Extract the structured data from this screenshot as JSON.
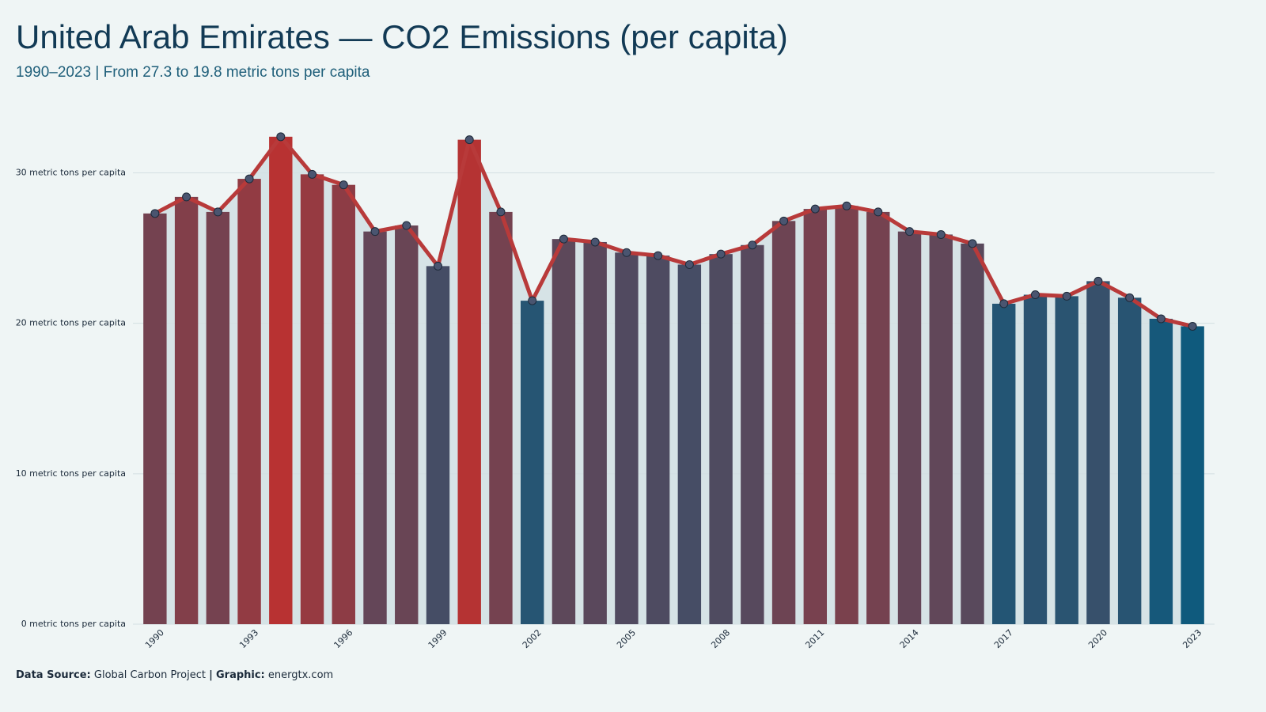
{
  "chart_data": {
    "type": "bar-line",
    "title": "United Arab Emirates — CO2 Emissions (per capita)",
    "subtitle": "1990–2023 | From 27.3 to 19.8 metric tons per capita",
    "categories": [
      "1990",
      null,
      null,
      "1993",
      null,
      null,
      "1996",
      null,
      null,
      "1999",
      null,
      null,
      "2002",
      null,
      null,
      "2005",
      null,
      null,
      "2008",
      null,
      null,
      "2011",
      null,
      null,
      "2014",
      null,
      null,
      "2017",
      null,
      null,
      "2020",
      null,
      null,
      "2023"
    ],
    "values": [
      27.3,
      28.4,
      27.4,
      29.6,
      32.4,
      29.9,
      29.2,
      26.1,
      26.5,
      23.8,
      32.2,
      27.4,
      21.5,
      25.6,
      25.4,
      24.7,
      24.5,
      23.9,
      24.6,
      25.2,
      26.8,
      27.6,
      27.8,
      27.4,
      26.1,
      25.9,
      25.3,
      21.3,
      21.9,
      21.8,
      22.8,
      21.7,
      20.3,
      19.8
    ],
    "ylim": [
      0,
      33.6
    ],
    "yticks": [
      {
        "value": 0,
        "label": "0 metric tons per capita"
      },
      {
        "value": 10,
        "label": "10 metric tons per capita"
      },
      {
        "value": 20,
        "label": "20 metric tons per capita"
      },
      {
        "value": 30,
        "label": "30 metric tons per capita"
      }
    ],
    "grid": true,
    "bar_color_low": "#0f5a7d",
    "bar_color_high": "#b83232",
    "line_color": "#b83a3a",
    "marker_color": "#4a5570",
    "area_color": "#d6e3e6",
    "footer": {
      "source_label": "Data Source:",
      "source": "Global Carbon Project",
      "separator": "|",
      "credit_label": "Graphic:",
      "credit": "energtx.com"
    }
  }
}
